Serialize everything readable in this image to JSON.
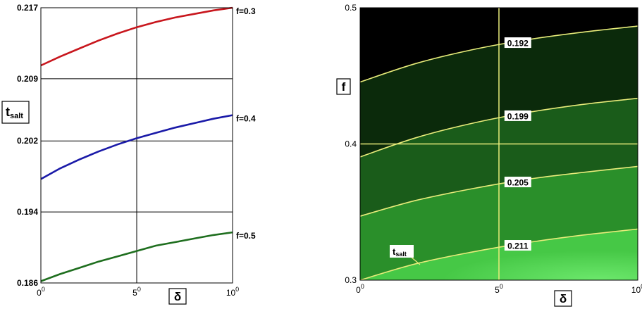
{
  "chart_data": [
    {
      "type": "line",
      "title": "",
      "xlabel": "δ",
      "ylabel": "t",
      "ylabel_sub": "salt",
      "xlim": [
        0,
        10
      ],
      "ylim": [
        0.186,
        0.217
      ],
      "x_ticks": [
        {
          "value": 0,
          "base": "0",
          "sup": "0"
        },
        {
          "value": 5,
          "base": "5",
          "sup": "0"
        },
        {
          "value": 10,
          "base": "10",
          "sup": "0"
        }
      ],
      "y_ticks": [
        {
          "value": 0.186,
          "label": "0.186"
        },
        {
          "value": 0.194,
          "label": "0.194"
        },
        {
          "value": 0.202,
          "label": "0.202"
        },
        {
          "value": 0.209,
          "label": "0.209"
        },
        {
          "value": 0.217,
          "label": "0.217"
        }
      ],
      "grid": true,
      "series": [
        {
          "name": "f=0.3",
          "color": "#c8161d",
          "x": [
            0,
            1,
            2,
            3,
            4,
            5,
            6,
            7,
            8,
            9,
            10
          ],
          "y": [
            0.2105,
            0.2115,
            0.2124,
            0.2133,
            0.2141,
            0.2148,
            0.2154,
            0.2159,
            0.2163,
            0.2167,
            0.217
          ]
        },
        {
          "name": "f=0.4",
          "color": "#1a1aa8",
          "x": [
            0,
            1,
            2,
            3,
            4,
            5,
            6,
            7,
            8,
            9,
            10
          ],
          "y": [
            0.1977,
            0.1989,
            0.1999,
            0.2008,
            0.2016,
            0.2023,
            0.2029,
            0.2035,
            0.204,
            0.2045,
            0.2049
          ]
        },
        {
          "name": "f=0.5",
          "color": "#1e6e1e",
          "x": [
            0,
            1,
            2,
            3,
            4,
            5,
            6,
            7,
            8,
            9,
            10
          ],
          "y": [
            0.1862,
            0.187,
            0.1877,
            0.1884,
            0.189,
            0.1896,
            0.1902,
            0.1906,
            0.191,
            0.1914,
            0.1917
          ]
        }
      ]
    },
    {
      "type": "contour",
      "title": "",
      "xlabel": "δ",
      "ylabel": "f",
      "xlim": [
        0,
        10
      ],
      "ylim": [
        0.3,
        0.5
      ],
      "x_ticks": [
        {
          "value": 0,
          "base": "0",
          "sup": "0"
        },
        {
          "value": 5,
          "base": "5",
          "sup": "0"
        },
        {
          "value": 10,
          "base": "10",
          "sup": "0"
        }
      ],
      "y_ticks": [
        {
          "value": 0.3,
          "label": "0.3"
        },
        {
          "value": 0.4,
          "label": "0.4"
        },
        {
          "value": 0.5,
          "label": "0.5"
        }
      ],
      "grid_lines": {
        "x": 5,
        "y": 0.4
      },
      "annotation": {
        "text": "t",
        "sub": "salt"
      },
      "contour_color": "#e8ec7a",
      "background": "#000000",
      "contours": [
        {
          "level": "0.192",
          "label_x": 5.3,
          "fill": "#0b2a0b",
          "x": [
            0,
            2,
            4,
            6,
            8,
            10
          ],
          "y": [
            0.4455,
            0.459,
            0.469,
            0.4765,
            0.482,
            0.4865
          ]
        },
        {
          "level": "0.199",
          "label_x": 5.3,
          "fill": "#1a5c1a",
          "x": [
            0,
            2,
            4,
            6,
            8,
            10
          ],
          "y": [
            0.3905,
            0.4045,
            0.415,
            0.423,
            0.429,
            0.4335
          ]
        },
        {
          "level": "0.205",
          "label_x": 5.3,
          "fill": "#2a8f2a",
          "x": [
            0,
            2,
            4,
            6,
            8,
            10
          ],
          "y": [
            0.347,
            0.3585,
            0.367,
            0.374,
            0.379,
            0.3835
          ]
        },
        {
          "level": "0.211",
          "label_x": 5.3,
          "fill": "#46c846",
          "x": [
            0,
            2,
            4,
            6,
            8,
            10
          ],
          "y": [
            0.3,
            0.312,
            0.3205,
            0.3275,
            0.333,
            0.3375
          ]
        }
      ],
      "lowest_fill": "#6ce86c"
    }
  ]
}
